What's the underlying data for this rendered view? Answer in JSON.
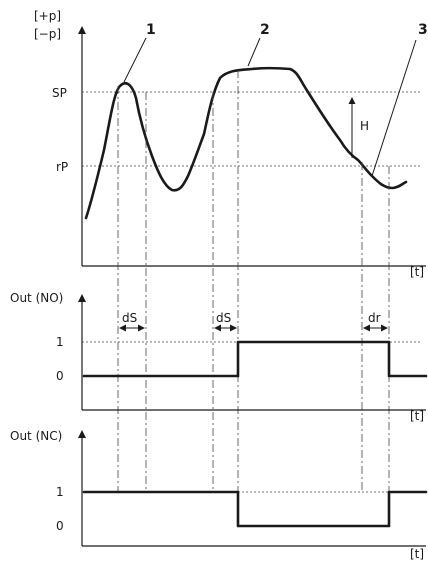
{
  "top_chart": {
    "y_label_plus": "[+p]",
    "y_label_minus": "[−p]",
    "sp_label": "SP",
    "rp_label": "rP",
    "h_label": "H",
    "x_unit": "[t]",
    "callouts": [
      "1",
      "2",
      "3"
    ]
  },
  "no_chart": {
    "title": "Out (NO)",
    "y_tick_high": "1",
    "y_tick_low": "0",
    "x_unit": "[t]",
    "ds_label_1": "dS",
    "ds_label_2": "dS",
    "dr_label": "dr"
  },
  "nc_chart": {
    "title": "Out (NC)",
    "y_tick_high": "1",
    "y_tick_low": "0",
    "x_unit": "[t]"
  }
}
